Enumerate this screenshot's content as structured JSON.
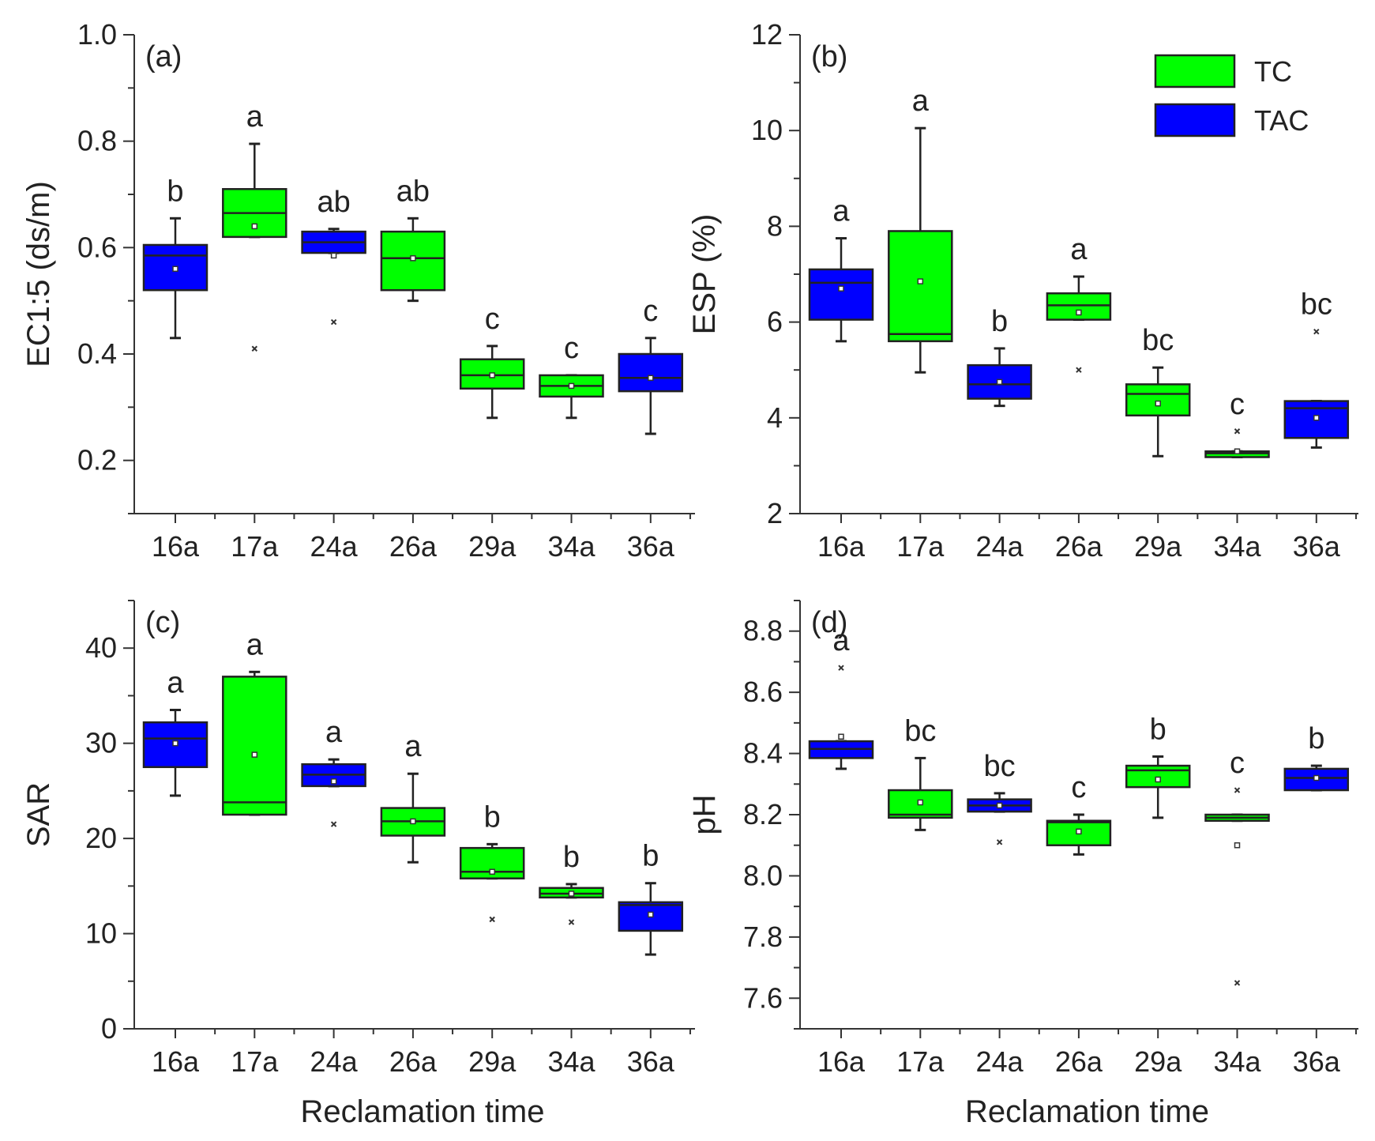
{
  "colors": {
    "TC": "#00ff00",
    "TAC": "#0000ff"
  },
  "legend": [
    {
      "key": "TC",
      "label": "TC"
    },
    {
      "key": "TAC",
      "label": "TAC"
    }
  ],
  "chart_data": [
    {
      "type": "box",
      "id": "a",
      "panel_label": "(a)",
      "ylabel": "EC1:5 (ds/m)",
      "xlabel": "",
      "ylim": [
        0.1,
        1.0
      ],
      "yticks": [
        0.2,
        0.4,
        0.6,
        0.8,
        1.0
      ],
      "ytick_labels": [
        "0.2",
        "0.4",
        "0.6",
        "0.8",
        "1.0"
      ],
      "categories": [
        "16a",
        "17a",
        "24a",
        "26a",
        "29a",
        "34a",
        "36a"
      ],
      "groups": [
        "TAC",
        "TC",
        "TAC",
        "TC",
        "TC",
        "TC",
        "TAC"
      ],
      "letters": [
        "b",
        "a",
        "ab",
        "ab",
        "c",
        "c",
        "c"
      ],
      "min": [
        0.43,
        0.62,
        0.59,
        0.5,
        0.28,
        0.28,
        0.25
      ],
      "q1": [
        0.52,
        0.62,
        0.59,
        0.52,
        0.335,
        0.32,
        0.33
      ],
      "median": [
        0.585,
        0.665,
        0.61,
        0.58,
        0.36,
        0.34,
        0.355
      ],
      "q3": [
        0.605,
        0.71,
        0.63,
        0.63,
        0.39,
        0.36,
        0.4
      ],
      "max": [
        0.655,
        0.795,
        0.635,
        0.655,
        0.415,
        0.36,
        0.43
      ],
      "mean": [
        0.56,
        0.64,
        0.585,
        0.58,
        0.36,
        0.34,
        0.355
      ],
      "outliers": [
        [],
        [
          0.41
        ],
        [
          0.46
        ],
        [],
        [],
        [],
        []
      ]
    },
    {
      "type": "box",
      "id": "b",
      "panel_label": "(b)",
      "ylabel": "ESP (%)",
      "xlabel": "",
      "ylim": [
        2,
        12
      ],
      "yticks": [
        2,
        4,
        6,
        8,
        10,
        12
      ],
      "ytick_labels": [
        "2",
        "4",
        "6",
        "8",
        "10",
        "12"
      ],
      "categories": [
        "16a",
        "17a",
        "24a",
        "26a",
        "29a",
        "34a",
        "36a"
      ],
      "groups": [
        "TAC",
        "TC",
        "TAC",
        "TC",
        "TC",
        "TC",
        "TAC"
      ],
      "letters": [
        "a",
        "a",
        "b",
        "a",
        "bc",
        "c",
        "bc"
      ],
      "min": [
        5.6,
        4.95,
        4.25,
        6.05,
        3.2,
        3.18,
        3.38
      ],
      "q1": [
        6.05,
        5.6,
        4.4,
        6.05,
        4.05,
        3.18,
        3.58
      ],
      "median": [
        6.82,
        5.75,
        4.7,
        6.35,
        4.5,
        3.26,
        4.2
      ],
      "q3": [
        7.1,
        7.9,
        5.1,
        6.6,
        4.7,
        3.3,
        4.35
      ],
      "max": [
        7.75,
        10.05,
        5.45,
        6.95,
        5.05,
        3.3,
        4.35
      ],
      "mean": [
        6.7,
        6.85,
        4.75,
        6.2,
        4.3,
        3.3,
        4.0
      ],
      "outliers": [
        [],
        [],
        [],
        [
          5.0
        ],
        [],
        [
          3.72
        ],
        [
          5.8
        ]
      ]
    },
    {
      "type": "box",
      "id": "c",
      "panel_label": "(c)",
      "ylabel": "SAR",
      "xlabel": "Reclamation time",
      "ylim": [
        0,
        45
      ],
      "yticks": [
        0,
        10,
        20,
        30,
        40
      ],
      "ytick_labels": [
        "0",
        "10",
        "20",
        "30",
        "40"
      ],
      "categories": [
        "16a",
        "17a",
        "24a",
        "26a",
        "29a",
        "34a",
        "36a"
      ],
      "groups": [
        "TAC",
        "TC",
        "TAC",
        "TC",
        "TC",
        "TC",
        "TAC"
      ],
      "letters": [
        "a",
        "a",
        "a",
        "a",
        "b",
        "b",
        "b"
      ],
      "min": [
        24.5,
        22.5,
        25.5,
        17.5,
        15.8,
        13.8,
        7.8
      ],
      "q1": [
        27.5,
        22.5,
        25.5,
        20.3,
        15.8,
        13.8,
        10.3
      ],
      "median": [
        30.5,
        23.8,
        26.7,
        21.8,
        16.5,
        14.2,
        13.0
      ],
      "q3": [
        32.2,
        37.0,
        27.8,
        23.2,
        19.0,
        14.8,
        13.3
      ],
      "max": [
        33.5,
        37.5,
        28.3,
        26.8,
        19.4,
        15.2,
        15.3
      ],
      "mean": [
        30.0,
        28.8,
        26.0,
        21.8,
        16.5,
        14.2,
        12.0
      ],
      "outliers": [
        [],
        [],
        [
          21.5
        ],
        [],
        [
          11.5
        ],
        [
          11.2
        ],
        []
      ]
    },
    {
      "type": "box",
      "id": "d",
      "panel_label": "(d)",
      "ylabel": "pH",
      "xlabel": "Reclamation time",
      "ylim": [
        7.5,
        8.9
      ],
      "yticks": [
        7.6,
        7.8,
        8.0,
        8.2,
        8.4,
        8.6,
        8.8
      ],
      "ytick_labels": [
        "7.6",
        "7.8",
        "8.0",
        "8.2",
        "8.4",
        "8.6",
        "8.8"
      ],
      "categories": [
        "16a",
        "17a",
        "24a",
        "26a",
        "29a",
        "34a",
        "36a"
      ],
      "groups": [
        "TAC",
        "TC",
        "TAC",
        "TC",
        "TC",
        "TC",
        "TAC"
      ],
      "letters": [
        "a",
        "bc",
        "bc",
        "c",
        "b",
        "c",
        "b"
      ],
      "min": [
        8.35,
        8.15,
        8.21,
        8.07,
        8.19,
        8.18,
        8.28
      ],
      "q1": [
        8.385,
        8.19,
        8.21,
        8.1,
        8.29,
        8.18,
        8.28
      ],
      "median": [
        8.415,
        8.2,
        8.23,
        8.175,
        8.345,
        8.19,
        8.32
      ],
      "q3": [
        8.44,
        8.28,
        8.25,
        8.18,
        8.36,
        8.2,
        8.35
      ],
      "max": [
        8.44,
        8.385,
        8.27,
        8.2,
        8.39,
        8.2,
        8.36
      ],
      "mean": [
        8.455,
        8.24,
        8.23,
        8.145,
        8.315,
        8.1,
        8.32
      ],
      "outliers": [
        [
          8.68
        ],
        [],
        [
          8.11
        ],
        [],
        [],
        [
          8.28,
          7.65
        ],
        []
      ]
    }
  ]
}
